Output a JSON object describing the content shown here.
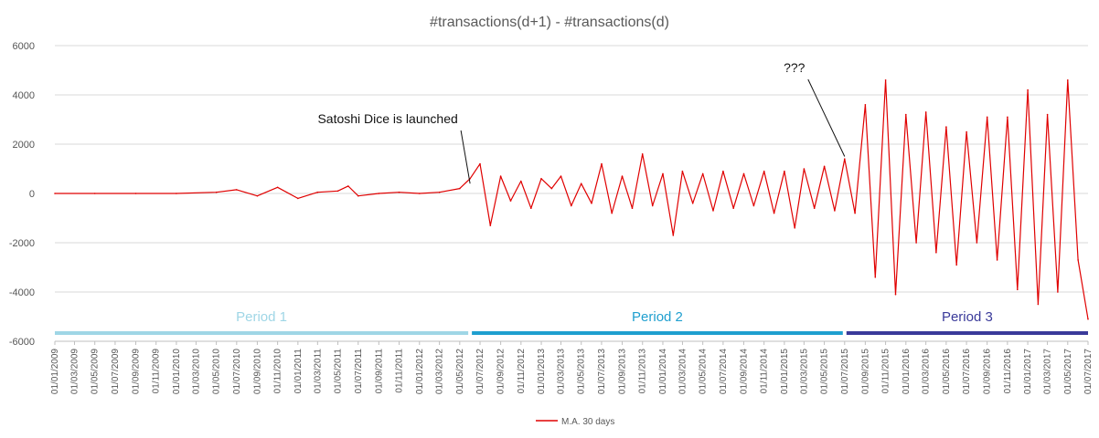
{
  "chart_data": {
    "type": "line",
    "title": "#transactions(d+1) - #transactions(d)",
    "xlabel": "",
    "ylabel": "",
    "ylim": [
      -6000,
      6000
    ],
    "y_ticks": [
      6000,
      4000,
      2000,
      0,
      -2000,
      -4000,
      -6000
    ],
    "x_tick_labels": [
      "01/01/2009",
      "01/03/2009",
      "01/05/2009",
      "01/07/2009",
      "01/09/2009",
      "01/11/2009",
      "01/01/2010",
      "01/03/2010",
      "01/05/2010",
      "01/07/2010",
      "01/09/2010",
      "01/11/2010",
      "01/01/2011",
      "01/03/2011",
      "01/05/2011",
      "01/07/2011",
      "01/09/2011",
      "01/11/2011",
      "01/01/2012",
      "01/03/2012",
      "01/05/2012",
      "01/07/2012",
      "01/09/2012",
      "01/11/2012",
      "01/01/2013",
      "01/03/2013",
      "01/05/2013",
      "01/07/2013",
      "01/09/2013",
      "01/11/2013",
      "01/01/2014",
      "01/03/2014",
      "01/05/2014",
      "01/07/2014",
      "01/09/2014",
      "01/11/2014",
      "01/01/2015",
      "01/03/2015",
      "01/05/2015",
      "01/07/2015",
      "01/09/2015",
      "01/11/2015",
      "01/01/2016",
      "01/03/2016",
      "01/05/2016",
      "01/07/2016",
      "01/09/2016",
      "01/11/2016",
      "01/01/2017",
      "01/03/2017",
      "01/05/2017",
      "01/07/2017"
    ],
    "grid": true,
    "legend_position": "bottom",
    "series": [
      {
        "name": "M.A. 30 days",
        "color": "#e00000",
        "x": [
          "01/01/2009",
          "01/05/2009",
          "01/09/2009",
          "01/01/2010",
          "01/05/2010",
          "01/07/2010",
          "01/09/2010",
          "01/11/2010",
          "01/01/2011",
          "01/03/2011",
          "01/05/2011",
          "01/06/2011",
          "01/07/2011",
          "01/09/2011",
          "01/11/2011",
          "01/01/2012",
          "01/03/2012",
          "01/05/2012",
          "01/06/2012",
          "01/07/2012",
          "01/08/2012",
          "01/09/2012",
          "01/10/2012",
          "01/11/2012",
          "01/12/2012",
          "01/01/2013",
          "01/02/2013",
          "01/03/2013",
          "01/04/2013",
          "01/05/2013",
          "01/06/2013",
          "01/07/2013",
          "01/08/2013",
          "01/09/2013",
          "01/10/2013",
          "01/11/2013",
          "01/12/2013",
          "01/01/2014",
          "01/02/2014",
          "01/03/2014",
          "01/04/2014",
          "01/05/2014",
          "01/06/2014",
          "01/07/2014",
          "01/08/2014",
          "01/09/2014",
          "01/10/2014",
          "01/11/2014",
          "01/12/2014",
          "01/01/2015",
          "01/02/2015",
          "01/03/2015",
          "01/04/2015",
          "01/05/2015",
          "01/06/2015",
          "01/07/2015",
          "01/08/2015",
          "01/09/2015",
          "01/10/2015",
          "01/11/2015",
          "01/12/2015",
          "01/01/2016",
          "01/02/2016",
          "01/03/2016",
          "01/04/2016",
          "01/05/2016",
          "01/06/2016",
          "01/07/2016",
          "01/08/2016",
          "01/09/2016",
          "01/10/2016",
          "01/11/2016",
          "01/12/2016",
          "01/01/2017",
          "01/02/2017",
          "01/03/2017",
          "01/04/2017",
          "01/05/2017",
          "01/06/2017",
          "01/07/2017"
        ],
        "y": [
          0,
          0,
          0,
          0,
          50,
          150,
          -100,
          250,
          -200,
          50,
          100,
          300,
          -100,
          0,
          50,
          0,
          50,
          200,
          600,
          1200,
          -1300,
          700,
          -300,
          500,
          -600,
          600,
          200,
          700,
          -500,
          400,
          -400,
          1200,
          -800,
          700,
          -600,
          1600,
          -500,
          800,
          -1700,
          900,
          -400,
          800,
          -700,
          900,
          -600,
          800,
          -500,
          900,
          -800,
          900,
          -1400,
          1000,
          -600,
          1100,
          -700,
          1400,
          -800,
          3600,
          -3400,
          4600,
          -4100,
          3200,
          -2000,
          3300,
          -2400,
          2700,
          -2900,
          2500,
          -2000,
          3100,
          -2700,
          3100,
          -3900,
          4200,
          -4500,
          3200,
          -4000,
          4600,
          -2700,
          -5100
        ]
      }
    ],
    "annotations": [
      {
        "text": "Satoshi Dice is launched",
        "date": "01/06/2012",
        "value": 400
      },
      {
        "text": "???",
        "date": "01/07/2015",
        "value": 1500
      }
    ],
    "periods": [
      {
        "label": "Period 1",
        "start": "01/01/2009",
        "end": "01/06/2012",
        "color": "#9fd6e6"
      },
      {
        "label": "Period 2",
        "start": "01/06/2012",
        "end": "01/07/2015",
        "color": "#1f9fcf"
      },
      {
        "label": "Period 3",
        "start": "01/07/2015",
        "end": "01/07/2017",
        "color": "#3a3a9a"
      }
    ]
  }
}
